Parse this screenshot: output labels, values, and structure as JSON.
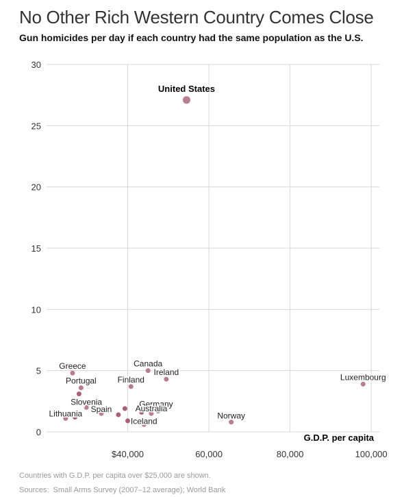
{
  "header": {
    "title": "No Other Rich Western Country Comes Close",
    "subtitle": "Gun homicides per day if each country had the same population as the U.S."
  },
  "footer": {
    "note": "Countries with G.D.P. per capita over $25,000 are shown.",
    "sources_label": "Sources:",
    "sources_text": "Small Arms Survey (2007–12 average); World Bank"
  },
  "colors": {
    "point": "#b5758a",
    "point_dark": "#a65673",
    "grid": "#d8d8d8"
  },
  "chart_data": {
    "type": "scatter",
    "title": "No Other Rich Western Country Comes Close",
    "subtitle": "Gun homicides per day if each country had the same population as the U.S.",
    "xlabel": "G.D.P. per capita",
    "ylabel": "",
    "xlim": [
      20000,
      102000
    ],
    "ylim": [
      0,
      30
    ],
    "x_ticks": [
      {
        "value": 40000,
        "label": "$40,000"
      },
      {
        "value": 60000,
        "label": "60,000"
      },
      {
        "value": 80000,
        "label": "80,000"
      },
      {
        "value": 100000,
        "label": "100,000"
      }
    ],
    "y_ticks": [
      {
        "value": 0,
        "label": "0"
      },
      {
        "value": 5,
        "label": "5"
      },
      {
        "value": 10,
        "label": "10"
      },
      {
        "value": 15,
        "label": "15"
      },
      {
        "value": 20,
        "label": "20"
      },
      {
        "value": 25,
        "label": "25"
      },
      {
        "value": 30,
        "label": "30"
      }
    ],
    "grid": true,
    "points": [
      {
        "name": "United States",
        "x": 54500,
        "y": 27.1,
        "label": "United States",
        "highlight": true
      },
      {
        "name": "Greece",
        "x": 26400,
        "y": 4.8,
        "label": "Greece"
      },
      {
        "name": "Canada",
        "x": 45000,
        "y": 5.0,
        "label": "Canada"
      },
      {
        "name": "Ireland",
        "x": 49500,
        "y": 4.3,
        "label": "Ireland"
      },
      {
        "name": "Portugal",
        "x": 28500,
        "y": 3.6,
        "label": "Portugal"
      },
      {
        "name": "",
        "x": 28000,
        "y": 3.1,
        "label": ""
      },
      {
        "name": "Finland",
        "x": 40800,
        "y": 3.7,
        "label": "Finland"
      },
      {
        "name": "Luxembourg",
        "x": 98000,
        "y": 3.9,
        "label": "Luxembourg"
      },
      {
        "name": "Slovenia",
        "x": 29800,
        "y": 2.0,
        "label": "Slovenia"
      },
      {
        "name": "",
        "x": 39300,
        "y": 1.9,
        "label": ""
      },
      {
        "name": "Germany",
        "x": 47500,
        "y": 1.7,
        "label": "Germany"
      },
      {
        "name": "Spain",
        "x": 33500,
        "y": 1.5,
        "label": "Spain"
      },
      {
        "name": "Australia",
        "x": 45800,
        "y": 1.5,
        "label": "Australia"
      },
      {
        "name": "",
        "x": 43400,
        "y": 1.6,
        "label": ""
      },
      {
        "name": "",
        "x": 37700,
        "y": 1.4,
        "label": ""
      },
      {
        "name": "Lithuania",
        "x": 24700,
        "y": 1.1,
        "label": "Lithuania"
      },
      {
        "name": "",
        "x": 27000,
        "y": 1.2,
        "label": ""
      },
      {
        "name": "Norway",
        "x": 65500,
        "y": 0.8,
        "label": "Norway"
      },
      {
        "name": "",
        "x": 40000,
        "y": 0.9,
        "label": ""
      },
      {
        "name": "Iceland",
        "x": 44000,
        "y": 0.6,
        "label": "Iceland"
      }
    ]
  }
}
